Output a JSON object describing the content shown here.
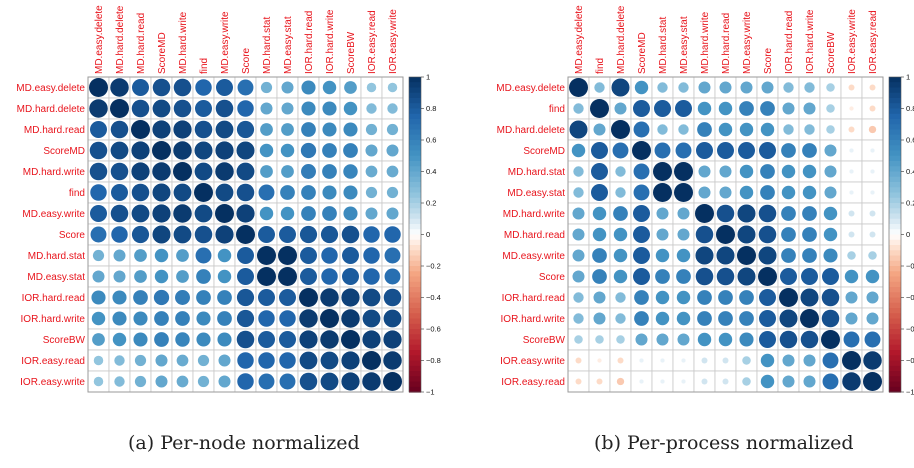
{
  "panels": [
    {
      "caption": "(a) Per-node normalized",
      "chart_data": {
        "type": "heatmap",
        "labels": [
          "MD.easy.delete",
          "MD.hard.delete",
          "MD.hard.read",
          "ScoreMD",
          "MD.hard.write",
          "find",
          "MD.easy.write",
          "Score",
          "MD.hard.stat",
          "MD.easy.stat",
          "IOR.hard.read",
          "IOR.hard.write",
          "ScoreBW",
          "IOR.easy.read",
          "IOR.easy.write"
        ],
        "colorbar_ticks": [
          "1",
          "0.8",
          "0.6",
          "0.4",
          "0.2",
          "0",
          "−0.2",
          "−0.4",
          "−0.6",
          "−0.8",
          "−1"
        ],
        "range": [
          -1,
          1
        ],
        "values": [
          [
            1.0,
            0.95,
            0.8,
            0.85,
            0.85,
            0.75,
            0.8,
            0.7,
            0.35,
            0.4,
            0.55,
            0.5,
            0.45,
            0.25,
            0.25
          ],
          [
            0.95,
            1.0,
            0.85,
            0.88,
            0.85,
            0.8,
            0.85,
            0.75,
            0.4,
            0.4,
            0.55,
            0.55,
            0.5,
            0.3,
            0.3
          ],
          [
            0.8,
            0.85,
            1.0,
            0.92,
            0.92,
            0.85,
            0.88,
            0.82,
            0.45,
            0.45,
            0.6,
            0.55,
            0.55,
            0.35,
            0.35
          ],
          [
            0.85,
            0.88,
            0.92,
            1.0,
            0.95,
            0.9,
            0.92,
            0.9,
            0.5,
            0.5,
            0.65,
            0.6,
            0.6,
            0.4,
            0.4
          ],
          [
            0.85,
            0.85,
            0.92,
            0.95,
            1.0,
            0.88,
            0.95,
            0.88,
            0.45,
            0.45,
            0.62,
            0.6,
            0.58,
            0.38,
            0.38
          ],
          [
            0.75,
            0.8,
            0.85,
            0.9,
            0.88,
            1.0,
            0.88,
            0.85,
            0.7,
            0.6,
            0.6,
            0.55,
            0.55,
            0.35,
            0.35
          ],
          [
            0.8,
            0.85,
            0.88,
            0.92,
            0.95,
            0.88,
            1.0,
            0.92,
            0.5,
            0.5,
            0.6,
            0.6,
            0.55,
            0.4,
            0.4
          ],
          [
            0.7,
            0.75,
            0.82,
            0.9,
            0.88,
            0.85,
            0.92,
            1.0,
            0.8,
            0.8,
            0.82,
            0.82,
            0.85,
            0.75,
            0.75
          ],
          [
            0.35,
            0.4,
            0.45,
            0.5,
            0.45,
            0.7,
            0.5,
            0.8,
            1.0,
            1.0,
            0.8,
            0.75,
            0.8,
            0.75,
            0.7
          ],
          [
            0.4,
            0.4,
            0.45,
            0.5,
            0.45,
            0.6,
            0.5,
            0.8,
            1.0,
            1.0,
            0.8,
            0.75,
            0.8,
            0.75,
            0.7
          ],
          [
            0.55,
            0.55,
            0.6,
            0.65,
            0.62,
            0.6,
            0.6,
            0.82,
            0.8,
            0.8,
            1.0,
            0.95,
            0.92,
            0.88,
            0.85
          ],
          [
            0.5,
            0.55,
            0.55,
            0.6,
            0.6,
            0.55,
            0.6,
            0.82,
            0.75,
            0.75,
            0.95,
            1.0,
            0.95,
            0.88,
            0.88
          ],
          [
            0.45,
            0.5,
            0.55,
            0.6,
            0.58,
            0.55,
            0.55,
            0.85,
            0.8,
            0.8,
            0.92,
            0.95,
            1.0,
            0.92,
            0.92
          ],
          [
            0.25,
            0.3,
            0.35,
            0.4,
            0.38,
            0.35,
            0.4,
            0.75,
            0.75,
            0.75,
            0.88,
            0.88,
            0.92,
            1.0,
            0.95
          ],
          [
            0.25,
            0.3,
            0.35,
            0.4,
            0.38,
            0.35,
            0.4,
            0.75,
            0.7,
            0.7,
            0.85,
            0.88,
            0.92,
            0.95,
            1.0
          ]
        ]
      }
    },
    {
      "caption": "(b) Per-process normalized",
      "chart_data": {
        "type": "heatmap",
        "labels": [
          "MD.easy.delete",
          "find",
          "MD.hard.delete",
          "ScoreMD",
          "MD.hard.stat",
          "MD.easy.stat",
          "MD.hard.write",
          "MD.hard.read",
          "MD.easy.write",
          "Score",
          "IOR.hard.read",
          "IOR.hard.write",
          "ScoreBW",
          "IOR.easy.write",
          "IOR.easy.read"
        ],
        "colorbar_ticks": [
          "1",
          "0.8",
          "0.6",
          "0.4",
          "0.2",
          "0",
          "−0.2",
          "−0.4",
          "−0.6",
          "−0.8",
          "−1"
        ],
        "range": [
          -1,
          1
        ],
        "values": [
          [
            1.0,
            0.3,
            0.9,
            0.5,
            0.3,
            0.3,
            0.4,
            0.4,
            0.4,
            0.4,
            0.3,
            0.3,
            0.2,
            -0.1,
            -0.1
          ],
          [
            0.3,
            1.0,
            0.4,
            0.8,
            0.8,
            0.8,
            0.5,
            0.5,
            0.6,
            0.6,
            0.4,
            0.4,
            0.2,
            -0.05,
            -0.1
          ],
          [
            0.9,
            0.4,
            1.0,
            0.7,
            0.3,
            0.3,
            0.6,
            0.5,
            0.5,
            0.5,
            0.3,
            0.3,
            0.2,
            -0.1,
            -0.15
          ],
          [
            0.5,
            0.8,
            0.7,
            1.0,
            0.7,
            0.7,
            0.8,
            0.8,
            0.8,
            0.8,
            0.6,
            0.6,
            0.4,
            0.05,
            0.05
          ],
          [
            0.3,
            0.8,
            0.3,
            0.7,
            1.0,
            1.0,
            0.4,
            0.4,
            0.5,
            0.6,
            0.5,
            0.5,
            0.4,
            0.05,
            0.05
          ],
          [
            0.3,
            0.8,
            0.3,
            0.7,
            1.0,
            1.0,
            0.4,
            0.4,
            0.5,
            0.6,
            0.5,
            0.5,
            0.4,
            0.05,
            0.05
          ],
          [
            0.4,
            0.5,
            0.6,
            0.8,
            0.4,
            0.4,
            1.0,
            0.85,
            0.9,
            0.85,
            0.6,
            0.6,
            0.5,
            0.1,
            0.1
          ],
          [
            0.4,
            0.5,
            0.5,
            0.8,
            0.4,
            0.4,
            0.85,
            1.0,
            0.9,
            0.85,
            0.6,
            0.6,
            0.5,
            0.1,
            0.1
          ],
          [
            0.4,
            0.6,
            0.5,
            0.8,
            0.5,
            0.5,
            0.9,
            0.9,
            1.0,
            0.9,
            0.6,
            0.6,
            0.55,
            0.2,
            0.2
          ],
          [
            0.4,
            0.6,
            0.5,
            0.8,
            0.6,
            0.6,
            0.85,
            0.85,
            0.9,
            1.0,
            0.8,
            0.8,
            0.8,
            0.5,
            0.5
          ],
          [
            0.3,
            0.4,
            0.3,
            0.6,
            0.5,
            0.5,
            0.6,
            0.6,
            0.6,
            0.8,
            1.0,
            0.9,
            0.85,
            0.4,
            0.4
          ],
          [
            0.3,
            0.4,
            0.3,
            0.6,
            0.5,
            0.5,
            0.6,
            0.6,
            0.6,
            0.8,
            0.9,
            1.0,
            0.85,
            0.4,
            0.4
          ],
          [
            0.2,
            0.2,
            0.2,
            0.4,
            0.4,
            0.4,
            0.5,
            0.5,
            0.55,
            0.8,
            0.85,
            0.85,
            1.0,
            0.7,
            0.7
          ],
          [
            -0.1,
            -0.05,
            -0.1,
            0.05,
            0.05,
            0.05,
            0.1,
            0.1,
            0.2,
            0.5,
            0.4,
            0.4,
            0.7,
            1.0,
            0.95
          ],
          [
            -0.1,
            -0.1,
            -0.15,
            0.05,
            0.05,
            0.05,
            0.1,
            0.1,
            0.2,
            0.5,
            0.4,
            0.4,
            0.7,
            0.95,
            1.0
          ]
        ]
      }
    }
  ]
}
